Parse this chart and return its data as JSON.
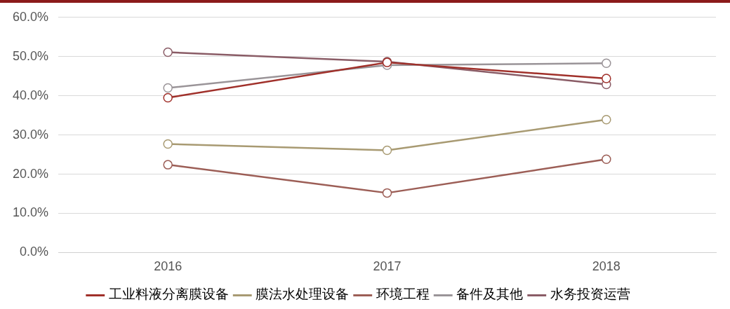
{
  "chart_data": {
    "type": "line",
    "categories": [
      "2016",
      "2017",
      "2018"
    ],
    "series": [
      {
        "name": "工业料液分离膜设备",
        "color": "#a0302a",
        "values": [
          39.5,
          48.5,
          44.4
        ]
      },
      {
        "name": "膜法水处理设备",
        "color": "#a89a72",
        "values": [
          27.7,
          26.1,
          33.9
        ]
      },
      {
        "name": "环境工程",
        "color": "#9c5e56",
        "values": [
          22.4,
          15.2,
          23.8
        ]
      },
      {
        "name": "备件及其他",
        "color": "#9a9498",
        "values": [
          42.0,
          47.8,
          48.3
        ]
      },
      {
        "name": "水务投资运营",
        "color": "#8a5c66",
        "values": [
          51.1,
          48.7,
          42.9
        ]
      }
    ],
    "ylim": [
      0,
      60
    ],
    "yticks": [
      {
        "value": 0,
        "label": "0.0%"
      },
      {
        "value": 10,
        "label": "10.0%"
      },
      {
        "value": 20,
        "label": "20.0%"
      },
      {
        "value": 30,
        "label": "30.0%"
      },
      {
        "value": 40,
        "label": "40.0%"
      },
      {
        "value": 50,
        "label": "50.0%"
      },
      {
        "value": 60,
        "label": "60.0%"
      }
    ],
    "grid": "y",
    "legend": "bottom",
    "marker": "circle",
    "line_style": "solid"
  }
}
